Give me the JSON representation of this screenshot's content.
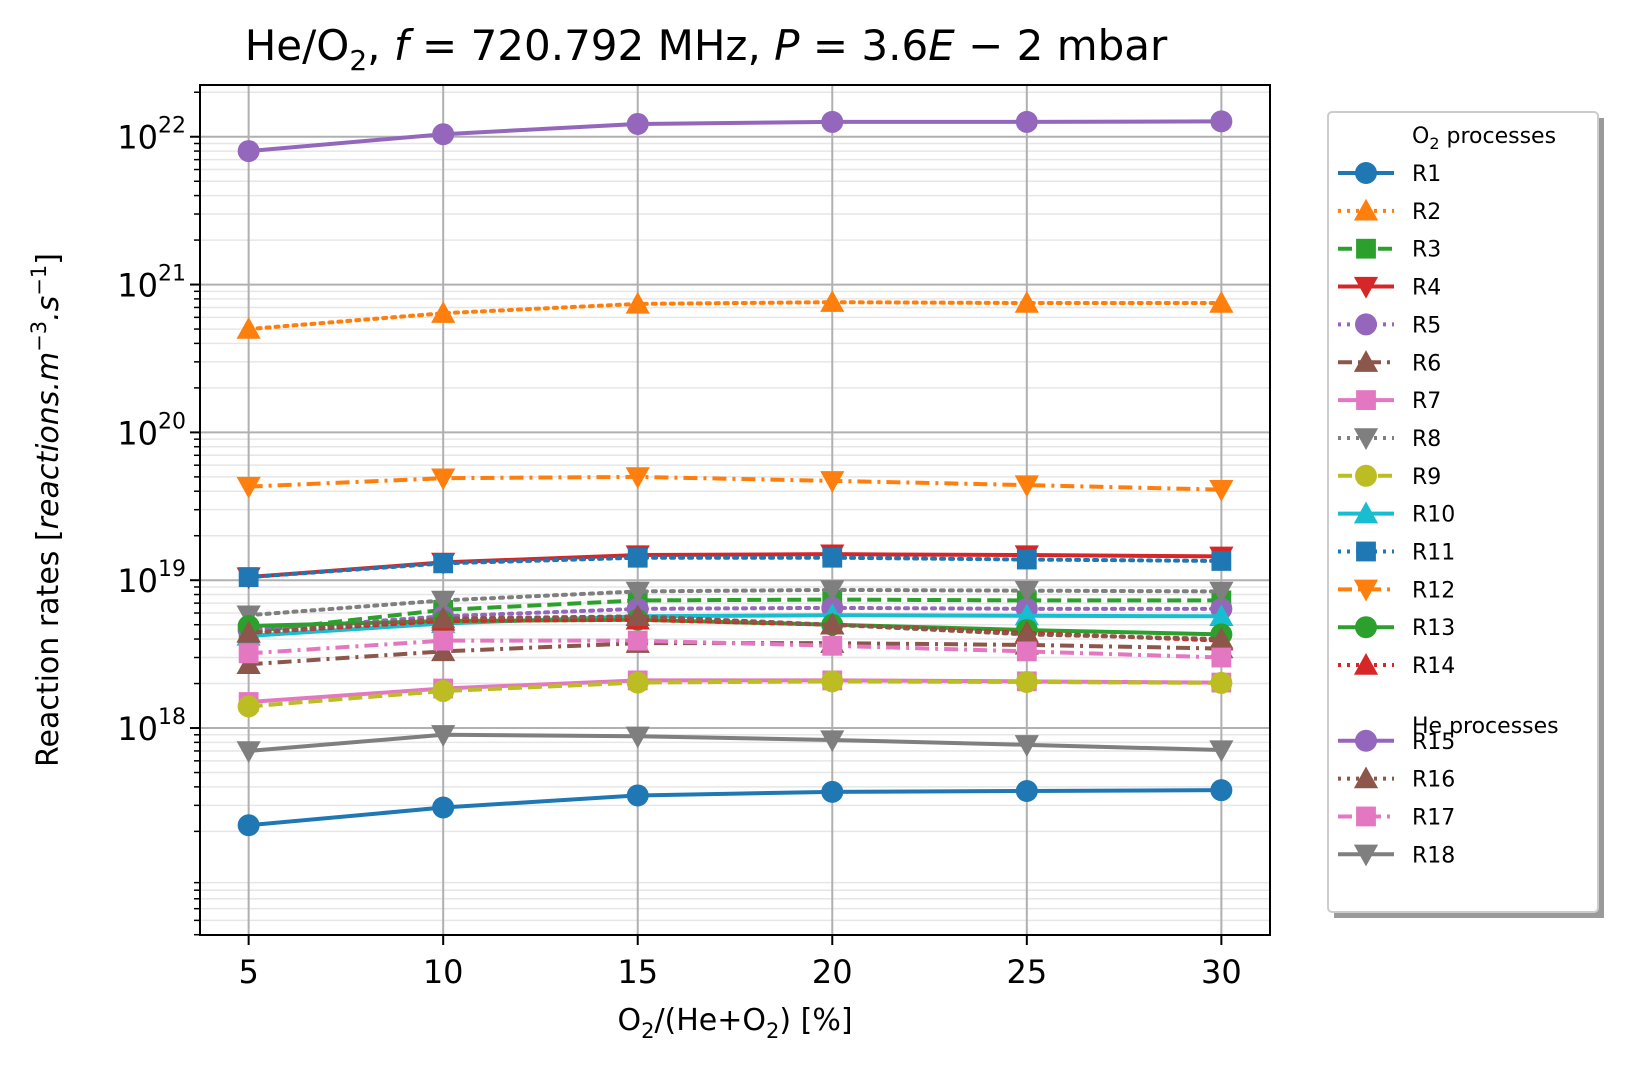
{
  "chart_data": {
    "type": "line",
    "title": "He/O₂, f = 720.792 MHz, P = 3.6E − 2 mbar",
    "title_parts": {
      "species": "He/O",
      "species_sub": "2",
      "freq_var": "f",
      "freq_rest": " = 720.792 MHz, ",
      "press_var": "P",
      "press_eq": " = 3.6",
      "press_E": "E",
      "press_rest": " − 2 mbar"
    },
    "xlabel": "O₂/(He+O₂) [%]",
    "xlabel_parts": {
      "a": "O",
      "a_sub": "2",
      "b": "/(He+O",
      "b_sub": "2",
      "c": ") [%]"
    },
    "ylabel": "Reaction rates [reactions.m⁻³.s⁻¹]",
    "ylabel_parts": {
      "a": "Reaction rates [",
      "b": "reactions.m",
      "b_sup": "−3",
      "c": ".s",
      "c_sup": "−1",
      "d": "]"
    },
    "yscale": "log",
    "xlim": [
      3.75,
      31.25
    ],
    "ylim_log10": [
      16.6,
      22.35
    ],
    "x": [
      5,
      10,
      15,
      20,
      25,
      30
    ],
    "x_tick_labels": [
      "5",
      "10",
      "15",
      "20",
      "25",
      "30"
    ],
    "y_tick_labels": [
      {
        "base": "10",
        "exp": "18",
        "value": 1e+18
      },
      {
        "base": "10",
        "exp": "19",
        "value": 1e+19
      },
      {
        "base": "10",
        "exp": "20",
        "value": 1e+20
      },
      {
        "base": "10",
        "exp": "21",
        "value": 1e+21
      },
      {
        "base": "10",
        "exp": "22",
        "value": 1e+22
      }
    ],
    "grid": true,
    "legend_position": "outside-right",
    "legend_groups": [
      {
        "header": "O",
        "header_sub": "2",
        "header_rest": " processes",
        "series": [
          "R1",
          "R2",
          "R3",
          "R4",
          "R5",
          "R6",
          "R7",
          "R8",
          "R9",
          "R10",
          "R11",
          "R12",
          "R13",
          "R14"
        ]
      },
      {
        "header": "He processes",
        "series": [
          "R15",
          "R16",
          "R17",
          "R18"
        ]
      }
    ],
    "series": [
      {
        "name": "R1",
        "color": "#1f77b4",
        "line": "solid",
        "marker": "circle",
        "values": [
          2.2e+17,
          2.9e+17,
          3.5e+17,
          3.7e+17,
          3.75e+17,
          3.8e+17
        ]
      },
      {
        "name": "R2",
        "color": "#ff7f0e",
        "line": "dotted",
        "marker": "triangle-up",
        "values": [
          5e+20,
          6.4e+20,
          7.4e+20,
          7.6e+20,
          7.5e+20,
          7.5e+20
        ]
      },
      {
        "name": "R3",
        "color": "#2ca02c",
        "line": "dashed",
        "marker": "square",
        "values": [
          4.5e+18,
          6.3e+18,
          7.3e+18,
          7.4e+18,
          7.3e+18,
          7.3e+18
        ]
      },
      {
        "name": "R4",
        "color": "#d62728",
        "line": "solid",
        "marker": "triangle-down",
        "values": [
          1.05e+19,
          1.32e+19,
          1.48e+19,
          1.5e+19,
          1.48e+19,
          1.45e+19
        ]
      },
      {
        "name": "R5",
        "color": "#9467bd",
        "line": "dotted",
        "marker": "circle",
        "values": [
          4.6e+18,
          5.7e+18,
          6.4e+18,
          6.5e+18,
          6.4e+18,
          6.4e+18
        ]
      },
      {
        "name": "R6",
        "color": "#8c564b",
        "line": "dashdot",
        "marker": "triangle-up",
        "values": [
          2.7e+18,
          3.3e+18,
          3.75e+18,
          3.75e+18,
          3.65e+18,
          3.45e+18
        ]
      },
      {
        "name": "R7",
        "color": "#e377c2",
        "line": "solid",
        "marker": "square",
        "values": [
          1.5e+18,
          1.85e+18,
          2.1e+18,
          2.1e+18,
          2.07e+18,
          2.03e+18
        ]
      },
      {
        "name": "R8",
        "color": "#7f7f7f",
        "line": "dotted",
        "marker": "triangle-down",
        "values": [
          5.8e+18,
          7.3e+18,
          8.4e+18,
          8.6e+18,
          8.5e+18,
          8.4e+18
        ]
      },
      {
        "name": "R9",
        "color": "#bcbd22",
        "line": "dashed",
        "marker": "circle",
        "values": [
          1.4e+18,
          1.78e+18,
          2.03e+18,
          2.07e+18,
          2.05e+18,
          2.02e+18
        ]
      },
      {
        "name": "R10",
        "color": "#17becf",
        "line": "solid",
        "marker": "triangle-up",
        "values": [
          4.2e+18,
          5.1e+18,
          5.7e+18,
          5.8e+18,
          5.75e+18,
          5.7e+18
        ]
      },
      {
        "name": "R11",
        "color": "#1f77b4",
        "line": "dotted",
        "marker": "square",
        "values": [
          1.05e+19,
          1.3e+19,
          1.42e+19,
          1.42e+19,
          1.38e+19,
          1.35e+19
        ]
      },
      {
        "name": "R12",
        "color": "#ff7f0e",
        "line": "dashdot",
        "marker": "triangle-down",
        "values": [
          4.3e+19,
          4.9e+19,
          5e+19,
          4.7e+19,
          4.4e+19,
          4.1e+19
        ]
      },
      {
        "name": "R13",
        "color": "#2ca02c",
        "line": "solid",
        "marker": "circle",
        "values": [
          4.9e+18,
          5.3e+18,
          5.4e+18,
          5e+18,
          4.6e+18,
          4.3e+18
        ]
      },
      {
        "name": "R14",
        "color": "#d62728",
        "line": "dotted",
        "marker": "triangle-up",
        "values": [
          4.4e+18,
          5.3e+18,
          5.4e+18,
          5e+18,
          4.4e+18,
          3.9e+18
        ]
      },
      {
        "name": "R15",
        "color": "#9467bd",
        "line": "solid",
        "marker": "circle",
        "values": [
          8e+21,
          1.04e+22,
          1.22e+22,
          1.26e+22,
          1.26e+22,
          1.27e+22
        ]
      },
      {
        "name": "R16",
        "color": "#8c564b",
        "line": "dotted",
        "marker": "triangle-up",
        "values": [
          4.4e+18,
          5.5e+18,
          5.7e+18,
          5e+18,
          4.3e+18,
          4e+18
        ]
      },
      {
        "name": "R17",
        "color": "#e377c2",
        "line": "dashdot",
        "marker": "square",
        "values": [
          3.2e+18,
          3.9e+18,
          3.9e+18,
          3.6e+18,
          3.3e+18,
          3e+18
        ]
      },
      {
        "name": "R18",
        "color": "#7f7f7f",
        "line": "solid",
        "marker": "triangle-down",
        "values": [
          7e+17,
          9e+17,
          8.8e+17,
          8.3e+17,
          7.7e+17,
          7.1e+17
        ]
      }
    ]
  }
}
